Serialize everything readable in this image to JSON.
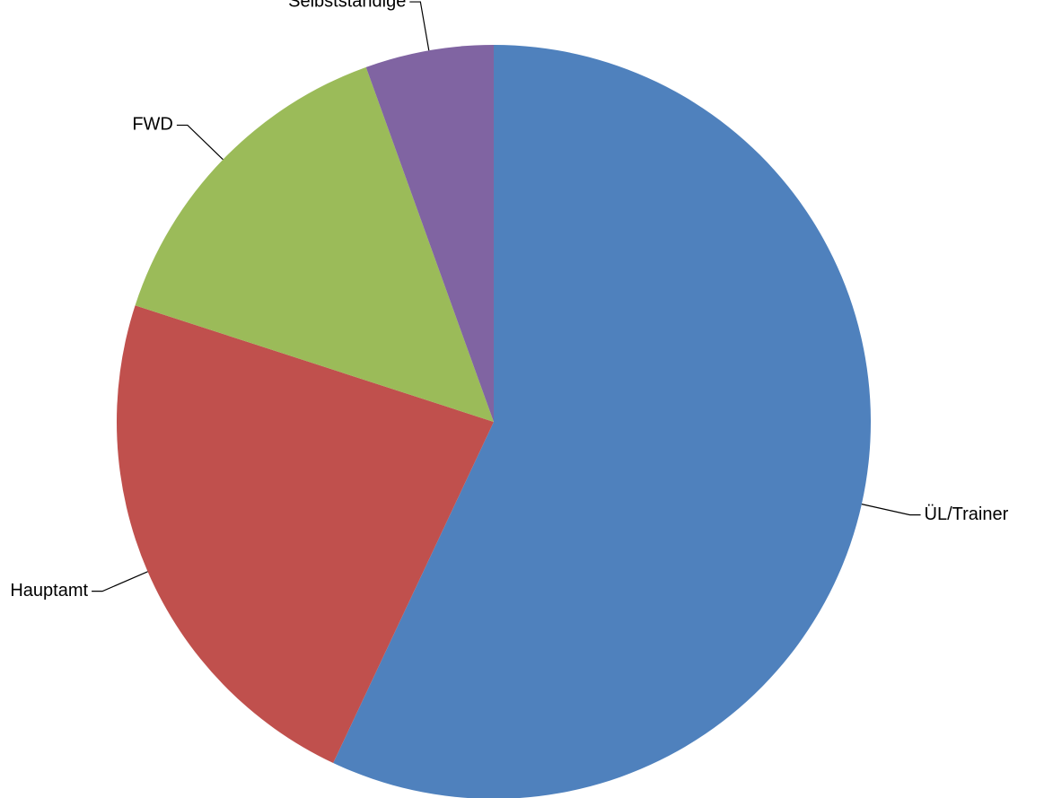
{
  "chart_data": {
    "type": "pie",
    "categories": [
      "ÜL/Trainer",
      "Hauptamt",
      "FWD",
      "Selbstständige"
    ],
    "values": [
      57,
      23,
      14.5,
      5.5
    ],
    "colors": [
      "#4f81bd",
      "#c0504d",
      "#9bbb59",
      "#8064a2"
    ],
    "start_angle": 0,
    "direction": "clockwise"
  }
}
